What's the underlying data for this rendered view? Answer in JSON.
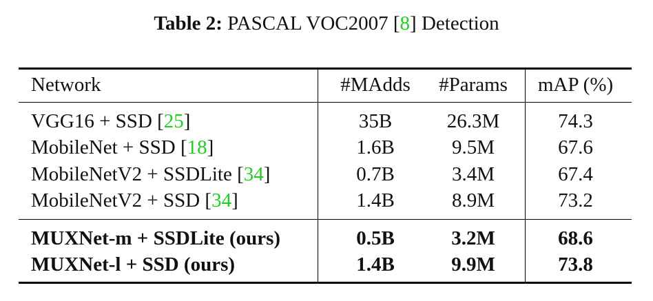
{
  "caption": {
    "label": "Table 2:",
    "text_before": " PASCAL VOC2007 [",
    "cite": "8",
    "text_after": "] Detection"
  },
  "table": {
    "headers": [
      "Network",
      "#MAdds",
      "#Params",
      "mAP (%)"
    ],
    "rows": [
      {
        "network": "VGG16 + SSD [",
        "cite": "25",
        "close": "]",
        "madds": "35B",
        "params": "26.3M",
        "map": "74.3"
      },
      {
        "network": "MobileNet + SSD [",
        "cite": "18",
        "close": "]",
        "madds": "1.6B",
        "params": "9.5M",
        "map": "67.6"
      },
      {
        "network": "MobileNetV2 + SSDLite [",
        "cite": "34",
        "close": "]",
        "madds": "0.7B",
        "params": "3.4M",
        "map": "67.4"
      },
      {
        "network": "MobileNetV2 + SSD [",
        "cite": "34",
        "close": "]",
        "madds": "1.4B",
        "params": "8.9M",
        "map": "73.2"
      },
      {
        "network": "MUXNet-m + SSDLite (ours)",
        "madds": "0.5B",
        "params": "3.2M",
        "map": "68.6"
      },
      {
        "network": "MUXNet-l + SSD (ours)",
        "madds": "1.4B",
        "params": "9.9M",
        "map": "73.8"
      }
    ]
  }
}
